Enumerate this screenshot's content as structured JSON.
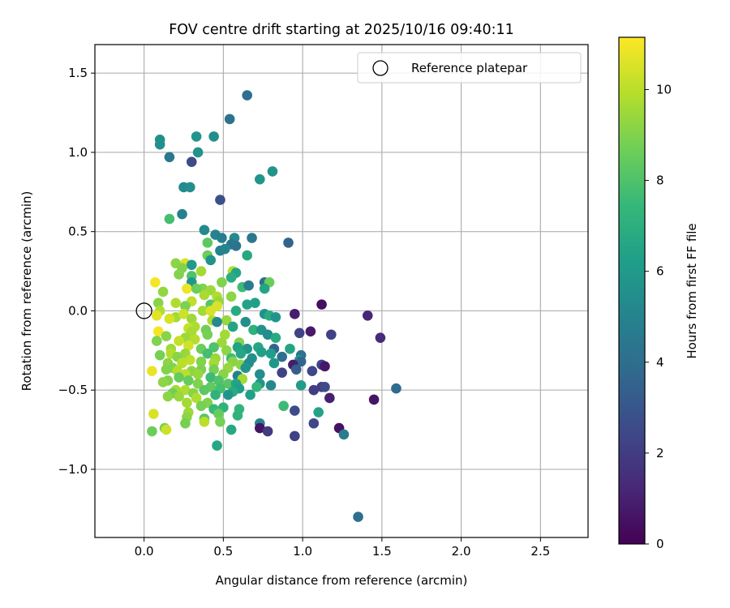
{
  "chart_data": {
    "type": "scatter",
    "title": "FOV centre drift starting at 2025/10/16 09:40:11",
    "xlabel": "Angular distance from reference (arcmin)",
    "ylabel": "Rotation from reference (arcmin)",
    "xlim": [
      -0.31,
      2.8
    ],
    "ylim": [
      -1.43,
      1.68
    ],
    "xticks": [
      0.0,
      0.5,
      1.0,
      1.5,
      2.0,
      2.5
    ],
    "xtick_labels": [
      "0.0",
      "0.5",
      "1.0",
      "1.5",
      "2.0",
      "2.5"
    ],
    "yticks": [
      -1.0,
      -0.5,
      0.0,
      0.5,
      1.0,
      1.5
    ],
    "ytick_labels": [
      "−1.0",
      "−0.5",
      "0.0",
      "0.5",
      "1.0",
      "1.5"
    ],
    "grid": true,
    "legend": {
      "position": "top-right",
      "entries": [
        "Reference platepar"
      ]
    },
    "reference_point": {
      "x": 0.0,
      "y": 0.0,
      "label": "Reference platepar"
    },
    "colorbar": {
      "label": "Hours from first FF file",
      "range": [
        0,
        11.15
      ],
      "ticks": [
        0,
        2,
        4,
        6,
        8,
        10
      ],
      "tick_labels": [
        "0",
        "2",
        "4",
        "6",
        "8",
        "10"
      ],
      "colormap": "viridis",
      "colormap_stops": [
        "#440154",
        "#482878",
        "#3e4989",
        "#31688e",
        "#26828e",
        "#1f9e89",
        "#35b779",
        "#6ece58",
        "#b5de2b",
        "#fde725"
      ]
    },
    "points": [
      [
        0.65,
        1.36,
        4.0
      ],
      [
        0.54,
        1.21,
        4.2
      ],
      [
        0.33,
        1.1,
        5.8
      ],
      [
        0.44,
        1.1,
        5.5
      ],
      [
        0.1,
        1.08,
        5.5
      ],
      [
        0.1,
        1.05,
        5.6
      ],
      [
        0.16,
        0.97,
        4.5
      ],
      [
        0.34,
        1.0,
        5.7
      ],
      [
        0.3,
        0.94,
        2.5
      ],
      [
        0.81,
        0.88,
        5.7
      ],
      [
        0.73,
        0.83,
        5.8
      ],
      [
        0.25,
        0.78,
        5.3
      ],
      [
        0.29,
        0.78,
        5.5
      ],
      [
        0.48,
        0.7,
        2.7
      ],
      [
        0.24,
        0.61,
        4.8
      ],
      [
        0.16,
        0.58,
        7.8
      ],
      [
        0.38,
        0.51,
        5.2
      ],
      [
        0.45,
        0.48,
        5.0
      ],
      [
        0.49,
        0.46,
        4.8
      ],
      [
        0.68,
        0.46,
        4.5
      ],
      [
        0.57,
        0.46,
        5.3
      ],
      [
        0.91,
        0.43,
        3.6
      ],
      [
        0.4,
        0.43,
        8.3
      ],
      [
        0.58,
        0.41,
        4.2
      ],
      [
        0.55,
        0.42,
        4.4
      ],
      [
        0.51,
        0.39,
        5.1
      ],
      [
        0.48,
        0.38,
        5.0
      ],
      [
        0.4,
        0.35,
        8.6
      ],
      [
        0.65,
        0.35,
        6.7
      ],
      [
        0.42,
        0.32,
        5.7
      ],
      [
        0.2,
        0.3,
        9.2
      ],
      [
        0.26,
        0.3,
        10.6
      ],
      [
        0.3,
        0.29,
        6.0
      ],
      [
        0.24,
        0.27,
        9.0
      ],
      [
        0.56,
        0.25,
        9.8
      ],
      [
        0.58,
        0.24,
        6.5
      ],
      [
        0.22,
        0.23,
        9.0
      ],
      [
        0.36,
        0.25,
        9.6
      ],
      [
        0.3,
        0.22,
        8.0
      ],
      [
        0.55,
        0.21,
        6.9
      ],
      [
        0.76,
        0.18,
        4.0
      ],
      [
        0.79,
        0.18,
        8.6
      ],
      [
        0.07,
        0.18,
        11.0
      ],
      [
        0.3,
        0.18,
        5.9
      ],
      [
        0.49,
        0.18,
        9.0
      ],
      [
        0.62,
        0.15,
        7.6
      ],
      [
        0.66,
        0.16,
        4.6
      ],
      [
        0.37,
        0.14,
        9.0
      ],
      [
        0.27,
        0.14,
        10.9
      ],
      [
        0.42,
        0.13,
        9.5
      ],
      [
        0.33,
        0.14,
        8.6
      ],
      [
        0.76,
        0.14,
        6.5
      ],
      [
        0.12,
        0.12,
        9.3
      ],
      [
        0.38,
        0.1,
        9.7
      ],
      [
        0.55,
        0.09,
        9.2
      ],
      [
        0.46,
        0.09,
        9.8
      ],
      [
        0.47,
        0.06,
        9.4
      ],
      [
        0.2,
        0.05,
        9.8
      ],
      [
        0.3,
        0.06,
        10.1
      ],
      [
        0.7,
        0.05,
        6.3
      ],
      [
        0.09,
        0.05,
        9.1
      ],
      [
        0.42,
        0.04,
        8.2
      ],
      [
        0.26,
        0.03,
        8.9
      ],
      [
        0.65,
        0.04,
        6.4
      ],
      [
        0.46,
        0.03,
        10.5
      ],
      [
        0.58,
        0.0,
        6.8
      ],
      [
        0.37,
        0.0,
        9.6
      ],
      [
        0.42,
        0.0,
        10.5
      ],
      [
        0.1,
        0.0,
        9.8
      ],
      [
        0.76,
        -0.02,
        5.6
      ],
      [
        0.95,
        -0.02,
        0.9
      ],
      [
        1.12,
        0.04,
        0.4
      ],
      [
        1.41,
        -0.03,
        1.2
      ],
      [
        0.08,
        -0.03,
        10.7
      ],
      [
        0.2,
        -0.04,
        9.6
      ],
      [
        0.25,
        -0.02,
        10.3
      ],
      [
        0.3,
        -0.05,
        9.5
      ],
      [
        0.16,
        -0.05,
        10.5
      ],
      [
        0.79,
        -0.03,
        6.8
      ],
      [
        0.83,
        -0.04,
        5.8
      ],
      [
        0.43,
        -0.06,
        9.8
      ],
      [
        0.52,
        -0.06,
        9.4
      ],
      [
        0.46,
        -0.07,
        5.3
      ],
      [
        0.64,
        -0.07,
        5.5
      ],
      [
        0.56,
        -0.1,
        6.5
      ],
      [
        0.32,
        -0.1,
        9.8
      ],
      [
        0.28,
        -0.11,
        10.2
      ],
      [
        0.39,
        -0.12,
        8.7
      ],
      [
        0.09,
        -0.13,
        11.0
      ],
      [
        0.3,
        -0.13,
        9.7
      ],
      [
        0.69,
        -0.12,
        7.1
      ],
      [
        0.74,
        -0.12,
        5.7
      ],
      [
        0.98,
        -0.14,
        2.2
      ],
      [
        1.05,
        -0.13,
        0.8
      ],
      [
        1.18,
        -0.15,
        2.2
      ],
      [
        1.49,
        -0.17,
        1.4
      ],
      [
        0.4,
        -0.15,
        8.8
      ],
      [
        0.51,
        -0.15,
        9.6
      ],
      [
        0.78,
        -0.15,
        5.4
      ],
      [
        0.14,
        -0.16,
        9.1
      ],
      [
        0.26,
        -0.17,
        9.5
      ],
      [
        0.83,
        -0.17,
        6.8
      ],
      [
        0.32,
        -0.18,
        9.9
      ],
      [
        0.08,
        -0.19,
        9.0
      ],
      [
        0.22,
        -0.19,
        10.2
      ],
      [
        0.49,
        -0.2,
        9.5
      ],
      [
        0.6,
        -0.2,
        9.0
      ],
      [
        0.28,
        -0.22,
        10.4
      ],
      [
        0.44,
        -0.23,
        8.0
      ],
      [
        0.72,
        -0.23,
        6.6
      ],
      [
        0.59,
        -0.23,
        6.4
      ],
      [
        0.82,
        -0.24,
        3.6
      ],
      [
        0.92,
        -0.24,
        6.5
      ],
      [
        0.17,
        -0.24,
        9.5
      ],
      [
        0.36,
        -0.24,
        8.6
      ],
      [
        0.52,
        -0.25,
        9.2
      ],
      [
        0.65,
        -0.24,
        5.8
      ],
      [
        0.74,
        -0.26,
        6.3
      ],
      [
        0.17,
        -0.27,
        9.9
      ],
      [
        0.26,
        -0.27,
        9.4
      ],
      [
        0.4,
        -0.27,
        7.8
      ],
      [
        0.61,
        -0.27,
        6.6
      ],
      [
        0.8,
        -0.27,
        6.2
      ],
      [
        0.99,
        -0.28,
        4.2
      ],
      [
        0.1,
        -0.28,
        8.8
      ],
      [
        0.21,
        -0.29,
        9.1
      ],
      [
        0.45,
        -0.3,
        9.4
      ],
      [
        0.55,
        -0.3,
        7.6
      ],
      [
        0.68,
        -0.3,
        5.6
      ],
      [
        0.87,
        -0.29,
        4.0
      ],
      [
        0.29,
        -0.31,
        10.1
      ],
      [
        0.98,
        -0.31,
        5.7
      ],
      [
        0.99,
        -0.32,
        3.6
      ],
      [
        0.36,
        -0.32,
        9.0
      ],
      [
        0.56,
        -0.32,
        9.1
      ],
      [
        0.15,
        -0.33,
        9.2
      ],
      [
        0.44,
        -0.33,
        9.6
      ],
      [
        0.61,
        -0.34,
        9.2
      ],
      [
        0.24,
        -0.33,
        10.0
      ],
      [
        0.66,
        -0.33,
        5.4
      ],
      [
        0.82,
        -0.33,
        5.9
      ],
      [
        0.94,
        -0.34,
        0.9
      ],
      [
        1.12,
        -0.34,
        2.3
      ],
      [
        1.14,
        -0.35,
        0.7
      ],
      [
        0.18,
        -0.36,
        9.0
      ],
      [
        0.53,
        -0.36,
        9.4
      ],
      [
        0.05,
        -0.38,
        10.8
      ],
      [
        0.36,
        -0.37,
        8.9
      ],
      [
        0.64,
        -0.36,
        5.8
      ],
      [
        0.96,
        -0.37,
        3.3
      ],
      [
        0.14,
        -0.37,
        9.0
      ],
      [
        0.21,
        -0.38,
        9.9
      ],
      [
        0.3,
        -0.38,
        9.2
      ],
      [
        0.44,
        -0.37,
        8.8
      ],
      [
        1.06,
        -0.38,
        2.4
      ],
      [
        0.87,
        -0.39,
        2.2
      ],
      [
        0.26,
        -0.4,
        10.0
      ],
      [
        0.34,
        -0.4,
        9.4
      ],
      [
        0.5,
        -0.4,
        9.1
      ],
      [
        0.59,
        -0.41,
        4.8
      ],
      [
        0.73,
        -0.4,
        5.5
      ],
      [
        0.62,
        -0.43,
        9.6
      ],
      [
        0.22,
        -0.42,
        8.5
      ],
      [
        0.42,
        -0.42,
        7.6
      ],
      [
        0.47,
        -0.44,
        8.0
      ],
      [
        0.15,
        -0.44,
        9.0
      ],
      [
        0.28,
        -0.44,
        8.5
      ],
      [
        0.53,
        -0.46,
        8.2
      ],
      [
        0.58,
        -0.46,
        6.5
      ],
      [
        0.73,
        -0.46,
        5.8
      ],
      [
        0.12,
        -0.45,
        9.2
      ],
      [
        0.34,
        -0.46,
        9.0
      ],
      [
        0.8,
        -0.47,
        5.2
      ],
      [
        0.99,
        -0.47,
        6.1
      ],
      [
        1.12,
        -0.48,
        2.0
      ],
      [
        1.14,
        -0.48,
        2.6
      ],
      [
        0.42,
        -0.48,
        8.4
      ],
      [
        0.48,
        -0.49,
        7.8
      ],
      [
        0.6,
        -0.49,
        6.2
      ],
      [
        0.71,
        -0.48,
        7.4
      ],
      [
        0.2,
        -0.5,
        9.6
      ],
      [
        0.26,
        -0.5,
        9.8
      ],
      [
        0.38,
        -0.5,
        8.3
      ],
      [
        0.56,
        -0.51,
        6.8
      ],
      [
        1.07,
        -0.5,
        2.0
      ],
      [
        1.59,
        -0.49,
        3.9
      ],
      [
        0.18,
        -0.52,
        8.7
      ],
      [
        0.31,
        -0.52,
        9.1
      ],
      [
        0.45,
        -0.53,
        7.2
      ],
      [
        0.53,
        -0.53,
        5.8
      ],
      [
        0.67,
        -0.53,
        6.3
      ],
      [
        0.15,
        -0.54,
        9.2
      ],
      [
        0.22,
        -0.54,
        9.4
      ],
      [
        0.33,
        -0.55,
        9.8
      ],
      [
        1.17,
        -0.55,
        1.0
      ],
      [
        1.45,
        -0.56,
        0.6
      ],
      [
        0.27,
        -0.58,
        9.6
      ],
      [
        0.4,
        -0.58,
        9.0
      ],
      [
        0.36,
        -0.6,
        8.8
      ],
      [
        0.5,
        -0.61,
        7.2
      ],
      [
        0.88,
        -0.6,
        7.6
      ],
      [
        0.44,
        -0.62,
        7.5
      ],
      [
        0.6,
        -0.62,
        7.3
      ],
      [
        0.95,
        -0.63,
        2.6
      ],
      [
        0.28,
        -0.64,
        9.5
      ],
      [
        0.47,
        -0.65,
        8.5
      ],
      [
        0.59,
        -0.66,
        7.2
      ],
      [
        1.1,
        -0.64,
        6.4
      ],
      [
        0.06,
        -0.65,
        10.5
      ],
      [
        0.27,
        -0.67,
        9.2
      ],
      [
        0.48,
        -0.7,
        8.8
      ],
      [
        0.38,
        -0.68,
        8.2
      ],
      [
        0.38,
        -0.7,
        10.0
      ],
      [
        0.26,
        -0.71,
        8.8
      ],
      [
        0.73,
        -0.71,
        5.0
      ],
      [
        1.07,
        -0.71,
        2.4
      ],
      [
        0.13,
        -0.74,
        8.8
      ],
      [
        0.73,
        -0.74,
        0.6
      ],
      [
        0.78,
        -0.76,
        1.9
      ],
      [
        1.23,
        -0.74,
        0.5
      ],
      [
        0.05,
        -0.76,
        8.6
      ],
      [
        0.14,
        -0.75,
        10.3
      ],
      [
        0.55,
        -0.75,
        6.7
      ],
      [
        0.95,
        -0.79,
        2.2
      ],
      [
        1.26,
        -0.78,
        4.6
      ],
      [
        0.46,
        -0.85,
        6.6
      ],
      [
        1.35,
        -1.3,
        4.0
      ]
    ]
  }
}
